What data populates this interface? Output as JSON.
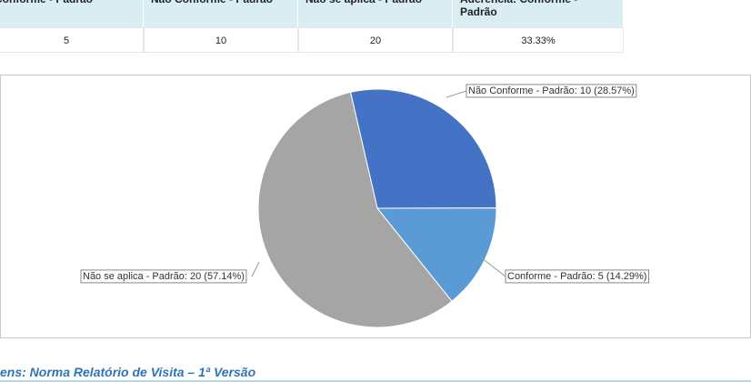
{
  "table": {
    "header": [
      "Conforme - Padrão",
      "Não Conforme - Padrão",
      "Não se aplica - Padrão",
      "Aderência: Conforme - Padrão"
    ],
    "rows": [
      [
        5,
        10,
        20,
        "33.33%"
      ]
    ]
  },
  "chart_data": {
    "type": "pie",
    "categories": [
      "Não Conforme - Padrão",
      "Conforme - Padrão",
      "Não se aplica - Padrão"
    ],
    "values": [
      10,
      5,
      20
    ],
    "value_labels": [
      "Não Conforme - Padrão: 10 (28.57%)",
      "Conforme - Padrão: 5 (14.29%)",
      "Não se aplica - Padrão: 20 (57.14%)"
    ],
    "colors": [
      "#4472c4",
      "#5b9bd5",
      "#a5a5a5"
    ]
  },
  "footer": {
    "title": "ens: Norma Relatório de Visita – 1ª Versão"
  }
}
